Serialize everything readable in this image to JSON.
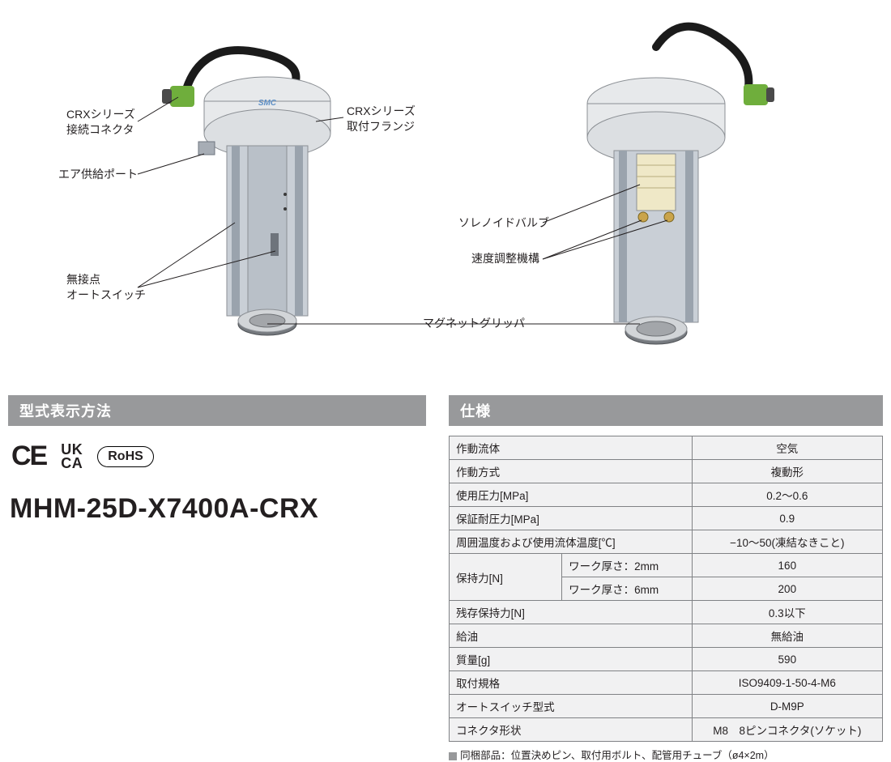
{
  "callouts_left": {
    "connector": "CRXシリーズ\n接続コネクタ",
    "air_port": "エア供給ポート",
    "auto_switch": "無接点\nオートスイッチ"
  },
  "callouts_mid": {
    "flange": "CRXシリーズ\n取付フランジ",
    "gripper": "マグネットグリッパ"
  },
  "callouts_right": {
    "solenoid": "ソレノイドバルブ",
    "speed": "速度調整機構"
  },
  "brand": "SMC",
  "headers": {
    "model": "型式表示方法",
    "spec": "仕様"
  },
  "certs": {
    "ce": "CE",
    "ukca_top": "UK",
    "ukca_bot": "CA",
    "rohs": "RoHS"
  },
  "model_number": "MHM-25D-X7400A-CRX",
  "spec_table": {
    "rows": [
      {
        "label": "作動流体",
        "value": "空気"
      },
      {
        "label": "作動方式",
        "value": "複動形"
      },
      {
        "label": "使用圧力[MPa]",
        "value": "0.2～0.6"
      },
      {
        "label": "保証耐圧力[MPa]",
        "value": "0.9"
      },
      {
        "label": "周囲温度および使用流体温度[℃]",
        "value": "−10～50(凍結なきこと)"
      }
    ],
    "holding": {
      "group_label": "保持力[N]",
      "sub": [
        {
          "sub_label": "ワーク厚さ：2mm",
          "value": "160"
        },
        {
          "sub_label": "ワーク厚さ：6mm",
          "value": "200"
        }
      ]
    },
    "rows2": [
      {
        "label": "残存保持力[N]",
        "value": "0.3以下"
      },
      {
        "label": "給油",
        "value": "無給油"
      },
      {
        "label": "質量[g]",
        "value": "590"
      },
      {
        "label": "取付規格",
        "value": "ISO9409-1-50-4-M6"
      },
      {
        "label": "オートスイッチ型式",
        "value": "D-M9P"
      },
      {
        "label": "コネクタ形状",
        "value": "M8　8ピンコネクタ(ソケット)"
      }
    ]
  },
  "footnote": "同梱部品：位置決めピン、取付用ボルト、配管用チューブ（ø4×2m）",
  "colors": {
    "header_bg": "#98999b",
    "table_bg": "#f1f1f2",
    "table_border": "#808285",
    "device_body": "#c9cfd6",
    "device_body_dark": "#9aa3ad",
    "device_top": "#e7e9eb",
    "connector_green": "#6fae3c",
    "cable": "#1b1b1b"
  }
}
